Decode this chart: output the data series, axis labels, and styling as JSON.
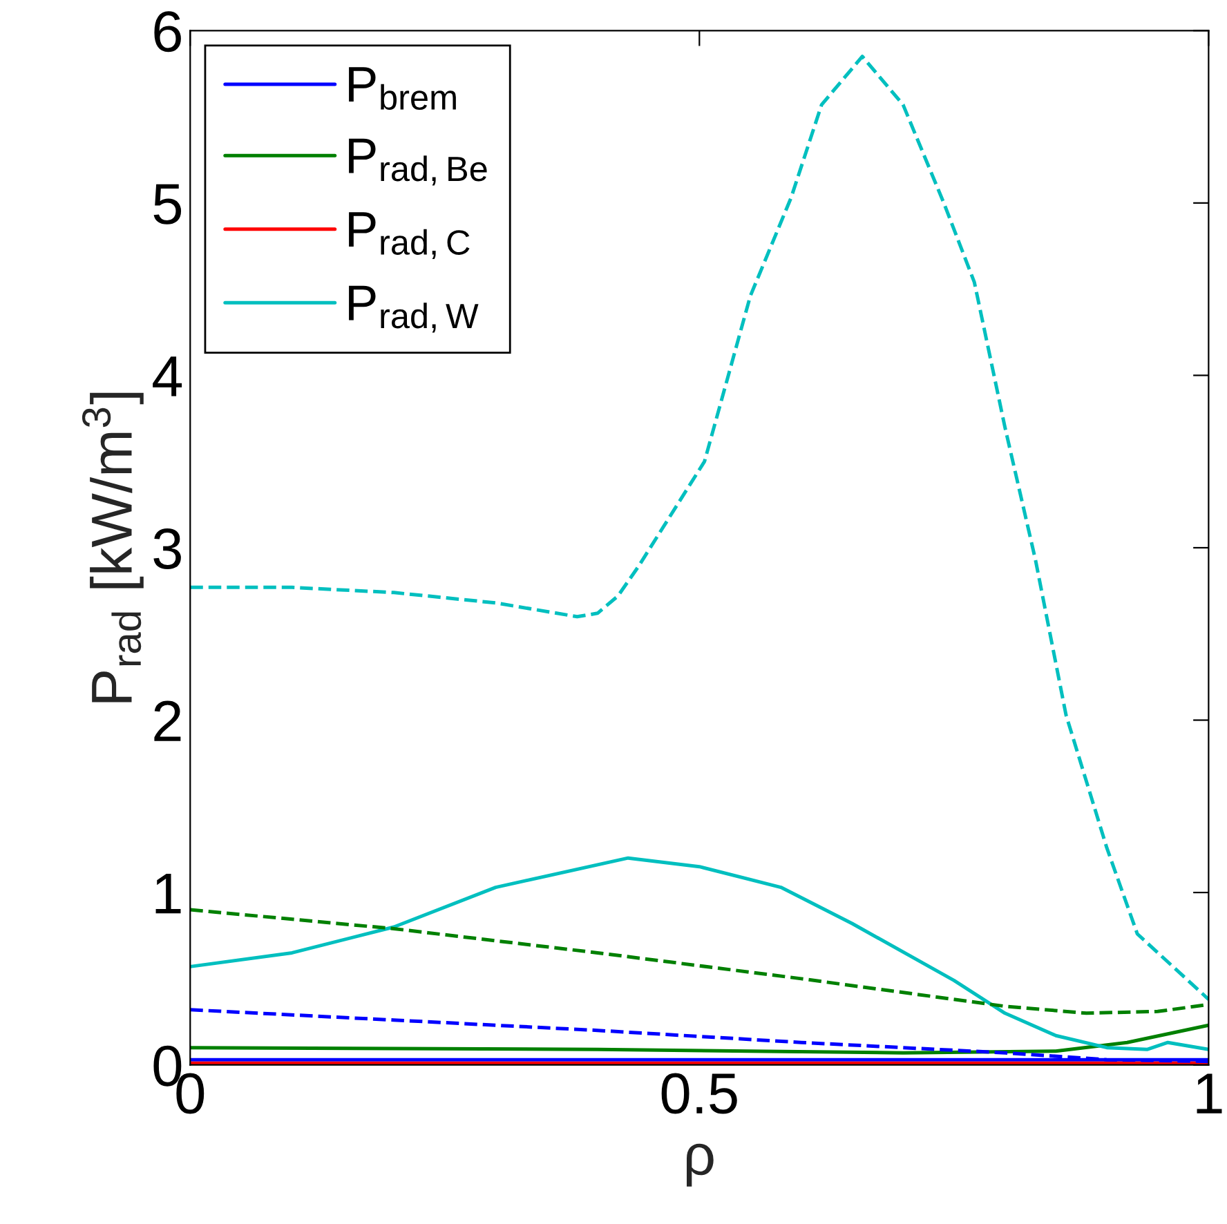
{
  "chart_data": {
    "type": "line",
    "xlabel": "ρ",
    "ylabel": "P$_{rad}$ [kW/m$^{3}$]",
    "xlim": [
      0,
      1
    ],
    "ylim": [
      0,
      6
    ],
    "xticks": [
      0,
      0.5,
      1
    ],
    "yticks": [
      0,
      1,
      2,
      3,
      4,
      5,
      6
    ],
    "grid": false,
    "legend": "top left",
    "series": [
      {
        "name": "P$_{brem}$",
        "color": "#0000ff",
        "line_style": "solid",
        "x": [
          0,
          0.5,
          1
        ],
        "values": [
          0.03,
          0.03,
          0.03
        ]
      },
      {
        "name": "P$_{rad,Be}$",
        "color": "#008000",
        "line_style": "solid",
        "x": [
          0,
          0.4,
          0.7,
          0.85,
          0.92,
          1
        ],
        "values": [
          0.1,
          0.09,
          0.07,
          0.08,
          0.13,
          0.23
        ]
      },
      {
        "name": "P$_{rad,C}$",
        "color": "#ff0000",
        "line_style": "solid",
        "x": [
          0,
          0.5,
          1
        ],
        "values": [
          0.01,
          0.01,
          0.01
        ]
      },
      {
        "name": "P$_{rad,W}$",
        "color": "#00bfbf",
        "line_style": "solid",
        "x": [
          0,
          0.1,
          0.2,
          0.3,
          0.43,
          0.5,
          0.58,
          0.65,
          0.75,
          0.8,
          0.85,
          0.9,
          0.94,
          0.96,
          1
        ],
        "values": [
          0.57,
          0.65,
          0.8,
          1.03,
          1.2,
          1.15,
          1.03,
          0.82,
          0.49,
          0.3,
          0.17,
          0.1,
          0.09,
          0.13,
          0.09
        ]
      },
      {
        "color": "#0000ff",
        "line_style": "dashed",
        "x": [
          0,
          0.2,
          0.4,
          0.6,
          0.8,
          0.9,
          1
        ],
        "values": [
          0.32,
          0.26,
          0.2,
          0.13,
          0.07,
          0.03,
          0.02
        ]
      },
      {
        "color": "#008000",
        "line_style": "dashed",
        "x": [
          0,
          0.2,
          0.4,
          0.6,
          0.8,
          0.88,
          0.95,
          1
        ],
        "values": [
          0.9,
          0.79,
          0.65,
          0.5,
          0.34,
          0.3,
          0.31,
          0.35
        ]
      },
      {
        "color": "#00bfbf",
        "line_style": "dashed",
        "x": [
          0,
          0.1,
          0.2,
          0.3,
          0.38,
          0.4,
          0.42,
          0.44,
          0.505,
          0.55,
          0.59,
          0.62,
          0.66,
          0.7,
          0.74,
          0.77,
          0.8,
          0.83,
          0.86,
          0.9,
          0.93,
          1
        ],
        "values": [
          2.77,
          2.77,
          2.74,
          2.68,
          2.6,
          2.62,
          2.72,
          2.89,
          3.5,
          4.46,
          5.03,
          5.57,
          5.85,
          5.57,
          5.0,
          4.54,
          3.7,
          2.93,
          2.03,
          1.26,
          0.76,
          0.38
        ]
      }
    ]
  }
}
